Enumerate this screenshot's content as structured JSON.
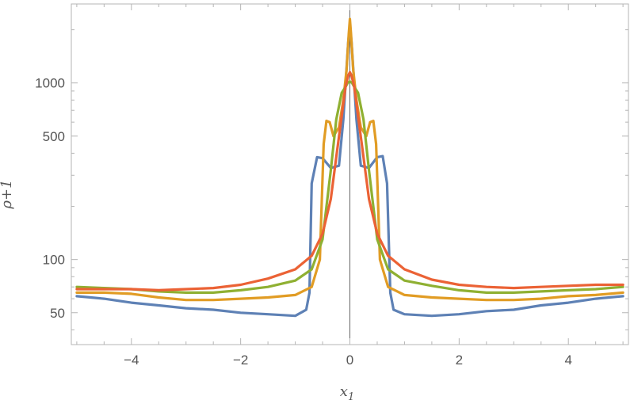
{
  "chart_data": {
    "type": "line",
    "title": "",
    "xlabel": "x",
    "xlabel_sub": "1",
    "ylabel": "ρ+1",
    "y_scale": "log",
    "xlim": [
      -5.1,
      5.1
    ],
    "ylim": [
      33,
      2800
    ],
    "x_ticks": [
      {
        "value": -4,
        "label": "−4"
      },
      {
        "value": -2,
        "label": "−2"
      },
      {
        "value": 0,
        "label": "0"
      },
      {
        "value": 2,
        "label": "2"
      },
      {
        "value": 4,
        "label": "4"
      }
    ],
    "y_ticks": [
      {
        "value": 50,
        "label": "50"
      },
      {
        "value": 100,
        "label": "100"
      },
      {
        "value": 500,
        "label": "500"
      },
      {
        "value": 1000,
        "label": "1000"
      }
    ],
    "grid": false,
    "legend": "none",
    "series": [
      {
        "color": "#5e81b5",
        "x": [
          -5,
          -4.5,
          -4,
          -3.5,
          -3,
          -2.5,
          -2,
          -1.5,
          -1,
          -0.8,
          -0.74,
          -0.7,
          -0.6,
          -0.5,
          -0.35,
          -0.2,
          -0.12,
          -0.07,
          -0.03,
          0,
          0.03,
          0.07,
          0.12,
          0.2,
          0.35,
          0.5,
          0.6,
          0.68,
          0.74,
          0.8,
          1,
          1.5,
          2,
          2.5,
          3,
          3.5,
          4,
          4.5,
          5
        ],
        "y": [
          62,
          60,
          57,
          55,
          53,
          52,
          50,
          49,
          48,
          52,
          65,
          270,
          380,
          375,
          330,
          340,
          620,
          1100,
          1700,
          2100,
          1700,
          1100,
          620,
          340,
          330,
          380,
          385,
          270,
          65,
          52,
          49,
          48,
          49,
          51,
          52,
          55,
          57,
          60,
          62
        ]
      },
      {
        "color": "#e19c24",
        "x": [
          -5,
          -4.5,
          -4,
          -3.5,
          -3,
          -2.5,
          -2,
          -1.5,
          -1,
          -0.7,
          -0.55,
          -0.48,
          -0.43,
          -0.37,
          -0.3,
          -0.2,
          -0.12,
          -0.06,
          -0.02,
          0,
          0.02,
          0.06,
          0.12,
          0.2,
          0.3,
          0.37,
          0.43,
          0.48,
          0.55,
          0.7,
          1,
          1.5,
          2,
          2.5,
          3,
          3.5,
          4,
          4.5,
          5
        ],
        "y": [
          65,
          65,
          64,
          61,
          59,
          59,
          60,
          61,
          63,
          70,
          100,
          450,
          610,
          600,
          500,
          560,
          800,
          1200,
          1900,
          2300,
          1900,
          1200,
          800,
          560,
          500,
          600,
          610,
          450,
          100,
          70,
          63,
          61,
          60,
          59,
          59,
          60,
          62,
          63,
          65
        ]
      },
      {
        "color": "#8fb032",
        "x": [
          -5,
          -4.5,
          -4,
          -3.5,
          -3,
          -2.5,
          -2,
          -1.5,
          -1,
          -0.7,
          -0.5,
          -0.35,
          -0.25,
          -0.15,
          -0.08,
          -0.04,
          0,
          0.04,
          0.08,
          0.15,
          0.25,
          0.35,
          0.5,
          0.7,
          1,
          1.5,
          2,
          2.5,
          3,
          3.5,
          4,
          4.5,
          5
        ],
        "y": [
          70,
          69,
          68,
          66,
          65,
          65,
          67,
          70,
          76,
          88,
          130,
          320,
          620,
          880,
          950,
          1000,
          1020,
          1000,
          950,
          880,
          620,
          320,
          130,
          88,
          76,
          71,
          67,
          65,
          65,
          66,
          67,
          68,
          70
        ]
      },
      {
        "color": "#eb6235",
        "x": [
          -5,
          -4.5,
          -4,
          -3.5,
          -3,
          -2.5,
          -2,
          -1.5,
          -1,
          -0.7,
          -0.5,
          -0.35,
          -0.25,
          -0.15,
          -0.08,
          -0.03,
          0,
          0.03,
          0.08,
          0.15,
          0.25,
          0.35,
          0.5,
          0.7,
          1,
          1.5,
          2,
          2.5,
          3,
          3.5,
          4,
          4.5,
          5
        ],
        "y": [
          68,
          68,
          68,
          67,
          68,
          69,
          72,
          78,
          88,
          105,
          140,
          220,
          380,
          650,
          950,
          1100,
          1150,
          1100,
          950,
          650,
          380,
          220,
          140,
          105,
          88,
          77,
          72,
          70,
          69,
          70,
          71,
          72,
          72
        ]
      }
    ]
  }
}
